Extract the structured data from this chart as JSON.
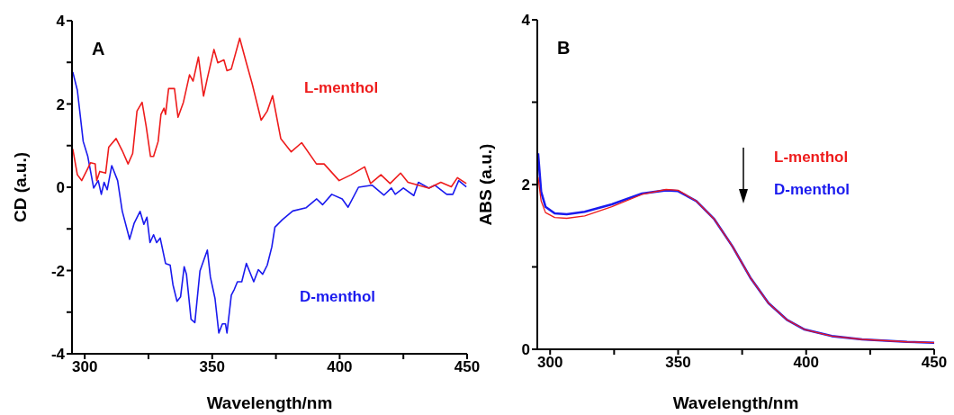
{
  "chart_data": [
    {
      "type": "line",
      "title": "A",
      "xlabel": "Wavelength/nm",
      "ylabel": "CD (a.u.)",
      "xlim": [
        295,
        450
      ],
      "xticks": [
        300,
        {
          "value": 325,
          "label": null
        },
        350,
        {
          "value": 375,
          "label": null
        },
        400,
        {
          "value": 425,
          "label": null
        },
        450
      ],
      "ylim": [
        -4,
        4
      ],
      "yticks": [
        -4,
        {
          "value": -3,
          "label": null
        },
        -2,
        {
          "value": -1,
          "label": null
        },
        0,
        {
          "value": 1,
          "label": null
        },
        2,
        {
          "value": 3,
          "label": null
        },
        4
      ],
      "marker": "none",
      "line_style": "solid",
      "series": [
        {
          "name": "L-menthol",
          "color": "#ee1c1c",
          "x": [
            295.3,
            297.1,
            298.8,
            301.2,
            302.3,
            304.1,
            304.7,
            305.9,
            308.2,
            309.4,
            312.3,
            314.7,
            317.0,
            318.8,
            320.5,
            322.5,
            324.1,
            325.8,
            327.0,
            328.8,
            329.9,
            331.1,
            331.7,
            332.9,
            335.2,
            336.6,
            338.7,
            341.1,
            342.5,
            344.6,
            346.6,
            348.1,
            350.7,
            352.2,
            354.6,
            355.8,
            357.5,
            360.8,
            363.4,
            365.7,
            369.2,
            371.6,
            373.7,
            376.9,
            381.0,
            385.1,
            390.9,
            393.9,
            399.8,
            404.5,
            409.8,
            412.1,
            416.2,
            419.8,
            423.9,
            426.8,
            435.0,
            439.7,
            443.8,
            446.2,
            449.7
          ],
          "values": [
            0.92,
            0.3,
            0.16,
            0.45,
            0.59,
            0.56,
            0.16,
            0.38,
            0.34,
            0.96,
            1.17,
            0.88,
            0.56,
            0.81,
            1.83,
            2.04,
            1.46,
            0.74,
            0.74,
            1.1,
            1.75,
            1.9,
            1.75,
            2.37,
            2.37,
            1.68,
            2.04,
            2.7,
            2.55,
            3.13,
            2.19,
            2.62,
            3.31,
            2.99,
            3.06,
            2.8,
            2.84,
            3.58,
            2.99,
            2.48,
            1.61,
            1.83,
            2.2,
            1.17,
            0.85,
            1.07,
            0.56,
            0.56,
            0.16,
            0.3,
            0.49,
            0.09,
            0.3,
            0.09,
            0.34,
            0.12,
            -0.02,
            0.12,
            0.01,
            0.23,
            0.09
          ]
        },
        {
          "name": "D-menthol",
          "color": "#1a1aee",
          "x": [
            295.3,
            297.1,
            299.4,
            301.2,
            303.5,
            305.3,
            306.5,
            307.6,
            308.8,
            310.6,
            312.9,
            314.7,
            317.6,
            319.4,
            321.7,
            323.2,
            324.4,
            325.6,
            327.0,
            328.2,
            329.6,
            331.7,
            333.5,
            334.6,
            336.2,
            337.6,
            339.0,
            339.9,
            341.7,
            343.2,
            345.2,
            348.1,
            349.3,
            351.1,
            352.6,
            354.0,
            355.2,
            355.8,
            357.5,
            358.7,
            359.9,
            361.6,
            363.4,
            366.3,
            368.1,
            369.8,
            371.6,
            373.4,
            374.6,
            377.5,
            381.6,
            386.9,
            391.0,
            393.3,
            396.9,
            401.0,
            403.3,
            407.4,
            412.7,
            417.4,
            420.3,
            421.8,
            425.0,
            429.1,
            430.9,
            435.0,
            437.3,
            442.0,
            444.4,
            446.7,
            449.7
          ],
          "values": [
            2.77,
            2.33,
            1.1,
            0.74,
            -0.02,
            0.16,
            -0.17,
            0.12,
            -0.06,
            0.52,
            0.16,
            -0.57,
            -1.25,
            -0.86,
            -0.58,
            -0.89,
            -0.72,
            -1.33,
            -1.14,
            -1.33,
            -1.22,
            -1.83,
            -1.87,
            -2.34,
            -2.74,
            -2.63,
            -1.91,
            -2.09,
            -3.17,
            -3.25,
            -2.01,
            -1.51,
            -2.16,
            -2.67,
            -3.5,
            -3.28,
            -3.28,
            -3.5,
            -2.59,
            -2.45,
            -2.27,
            -2.27,
            -1.83,
            -2.27,
            -1.98,
            -2.09,
            -1.87,
            -1.43,
            -0.96,
            -0.78,
            -0.57,
            -0.49,
            -0.28,
            -0.42,
            -0.17,
            -0.28,
            -0.48,
            0.0,
            0.05,
            -0.19,
            -0.02,
            -0.17,
            -0.02,
            -0.2,
            0.12,
            -0.02,
            0.05,
            -0.17,
            -0.17,
            0.16,
            0.01
          ]
        }
      ]
    },
    {
      "type": "line",
      "title": "B",
      "xlabel": "Wavelength/nm",
      "ylabel": "ABS (a.u.)",
      "xlim": [
        295,
        450
      ],
      "xticks": [
        300,
        {
          "value": 325,
          "label": null
        },
        350,
        {
          "value": 375,
          "label": null
        },
        400,
        {
          "value": 425,
          "label": null
        },
        450
      ],
      "ylim": [
        0,
        4
      ],
      "yticks": [
        0,
        {
          "value": 1,
          "label": null
        },
        2,
        {
          "value": 3,
          "label": null
        },
        4
      ],
      "marker": "none",
      "line_style": "solid",
      "series": [
        {
          "name": "L-menthol",
          "color": "#ee1c1c",
          "x": [
            295.3,
            296.5,
            298.2,
            301.8,
            306.5,
            313.5,
            324.1,
            335.9,
            345.3,
            350,
            357.1,
            364.1,
            371.2,
            378.2,
            385.3,
            392.4,
            399.4,
            410,
            421.8,
            439.4,
            450
          ],
          "values": [
            2.09,
            1.8,
            1.66,
            1.6,
            1.59,
            1.62,
            1.73,
            1.88,
            1.94,
            1.93,
            1.8,
            1.58,
            1.25,
            0.87,
            0.56,
            0.36,
            0.24,
            0.16,
            0.12,
            0.09,
            0.08
          ]
        },
        {
          "name": "D-menthol",
          "color": "#1a1aee",
          "x": [
            295.3,
            296.5,
            298.2,
            301.8,
            306.5,
            313.5,
            324.1,
            335.9,
            345.3,
            350,
            357.1,
            364.1,
            371.2,
            378.2,
            385.3,
            392.4,
            399.4,
            410,
            421.8,
            439.4,
            450
          ],
          "values": [
            2.38,
            1.91,
            1.73,
            1.65,
            1.64,
            1.67,
            1.76,
            1.89,
            1.93,
            1.92,
            1.8,
            1.58,
            1.25,
            0.87,
            0.56,
            0.36,
            0.24,
            0.16,
            0.12,
            0.09,
            0.08
          ]
        }
      ]
    }
  ]
}
